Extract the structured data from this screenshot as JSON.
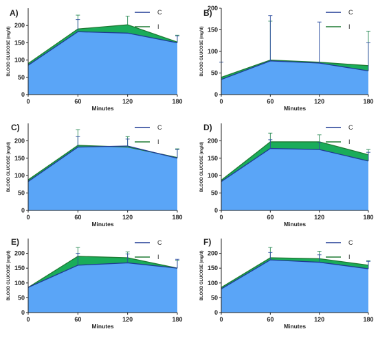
{
  "colors": {
    "C": "#5aa5f7",
    "I": "#1aac5a",
    "C_line": "#1f3a93",
    "I_line": "#1e7a32",
    "axis": "#222222",
    "error": "#2d4ea0"
  },
  "chart_data": [
    {
      "type": "area",
      "title": "A)",
      "xlabel": "Minutes",
      "ylabel": "BLOOD GLUCOSE (mg/d)",
      "x": [
        0,
        60,
        120,
        180
      ],
      "xlim": [
        0,
        180
      ],
      "ylim": [
        0,
        250
      ],
      "yticks": [
        0,
        50,
        100,
        150,
        200
      ],
      "grid": false,
      "legend": "top-right",
      "series": [
        {
          "name": "C",
          "values": [
            85,
            182,
            178,
            150
          ],
          "error": [
            null,
            35,
            null,
            20
          ]
        },
        {
          "name": "I",
          "values": [
            90,
            190,
            202,
            152
          ],
          "error": [
            null,
            40,
            25,
            20
          ]
        }
      ]
    },
    {
      "type": "area",
      "title": "B)",
      "xlabel": "Minutes",
      "ylabel": "BLOOD GLUCOSE (mg/d)",
      "x": [
        0,
        60,
        120,
        180
      ],
      "xlim": [
        0,
        180
      ],
      "ylim": [
        0,
        200
      ],
      "yticks": [
        0,
        50,
        100,
        150,
        200
      ],
      "grid": false,
      "legend": "top-right",
      "series": [
        {
          "name": "C",
          "values": [
            35,
            78,
            73,
            55
          ],
          "error": [
            40,
            105,
            95,
            65
          ]
        },
        {
          "name": "I",
          "values": [
            40,
            80,
            75,
            67
          ],
          "error": [
            null,
            90,
            null,
            80
          ]
        }
      ]
    },
    {
      "type": "area",
      "title": "C)",
      "xlabel": "Minutes",
      "ylabel": "BLOOD GLUCOSE (mg/d)",
      "x": [
        0,
        60,
        120,
        180
      ],
      "xlim": [
        0,
        180
      ],
      "ylim": [
        0,
        250
      ],
      "yticks": [
        0,
        50,
        100,
        150,
        200
      ],
      "grid": false,
      "legend": "top-right",
      "series": [
        {
          "name": "C",
          "values": [
            83,
            182,
            185,
            150
          ],
          "error": [
            null,
            30,
            20,
            25
          ]
        },
        {
          "name": "I",
          "values": [
            88,
            187,
            182,
            152
          ],
          "error": [
            null,
            45,
            30,
            25
          ]
        }
      ]
    },
    {
      "type": "area",
      "title": "D)",
      "xlabel": "Minutes",
      "ylabel": "BLOOD GLUCOSE (mg/d)",
      "x": [
        0,
        60,
        120,
        180
      ],
      "xlim": [
        0,
        180
      ],
      "ylim": [
        0,
        250
      ],
      "yticks": [
        0,
        50,
        100,
        150,
        200
      ],
      "grid": false,
      "legend": "top-right",
      "series": [
        {
          "name": "C",
          "values": [
            83,
            178,
            175,
            142
          ],
          "error": [
            null,
            25,
            20,
            25
          ]
        },
        {
          "name": "I",
          "values": [
            87,
            197,
            197,
            160
          ],
          "error": [
            null,
            25,
            20,
            15
          ]
        }
      ]
    },
    {
      "type": "area",
      "title": "E)",
      "xlabel": "Minutes",
      "ylabel": "BLOOD GLUCOSE (mg/d)",
      "x": [
        0,
        60,
        120,
        180
      ],
      "xlim": [
        0,
        180
      ],
      "ylim": [
        0,
        250
      ],
      "yticks": [
        0,
        50,
        100,
        150,
        200
      ],
      "grid": false,
      "legend": "top-right",
      "series": [
        {
          "name": "C",
          "values": [
            85,
            160,
            168,
            150
          ],
          "error": [
            null,
            40,
            30,
            30
          ]
        },
        {
          "name": "I",
          "values": [
            85,
            190,
            185,
            150
          ],
          "error": [
            null,
            30,
            20,
            25
          ]
        }
      ]
    },
    {
      "type": "area",
      "title": "F)",
      "xlabel": "Minutes",
      "ylabel": "BLOOD GLUCOSE (mg/d)",
      "x": [
        0,
        60,
        120,
        180
      ],
      "xlim": [
        0,
        180
      ],
      "ylim": [
        0,
        250
      ],
      "yticks": [
        0,
        50,
        100,
        150,
        200
      ],
      "grid": false,
      "legend": "top-right",
      "series": [
        {
          "name": "C",
          "values": [
            80,
            178,
            170,
            148
          ],
          "error": [
            null,
            25,
            25,
            25
          ]
        },
        {
          "name": "I",
          "values": [
            85,
            185,
            182,
            160
          ],
          "error": [
            null,
            35,
            25,
            15
          ]
        }
      ]
    }
  ]
}
